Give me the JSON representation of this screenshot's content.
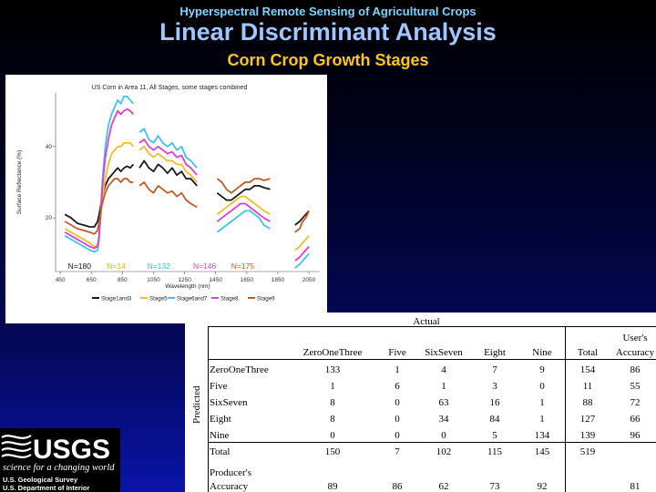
{
  "header": {
    "supertitle": "Hyperspectral Remote Sensing of Agricultural Crops",
    "title": "Linear Discriminant Analysis",
    "subtitle": "Corn Crop Growth Stages"
  },
  "chart_data": {
    "type": "line",
    "title": "US Corn in Area 11, All Stages, some stages combined",
    "xlabel": "Wavelength (nm)",
    "ylabel": "Surface Reflectance (%)",
    "xlim": [
      420,
      2120
    ],
    "ylim": [
      5,
      55
    ],
    "xticks": [
      450,
      650,
      850,
      1050,
      1250,
      1450,
      1650,
      1850,
      2050
    ],
    "yticks": [
      20,
      40
    ],
    "grid": false,
    "legend_position": "bottom",
    "gaps": [
      [
        920,
        960
      ],
      [
        1330,
        1460
      ],
      [
        1800,
        1960
      ]
    ],
    "bands": [
      {
        "segment": 0,
        "x": [
          480,
          520,
          560,
          600,
          640,
          670,
          690,
          700,
          720,
          740,
          760,
          780,
          800,
          820,
          840,
          860,
          880,
          900,
          920
        ]
      },
      {
        "segment": 1,
        "x": [
          960,
          990,
          1020,
          1050,
          1080,
          1110,
          1140,
          1170,
          1200,
          1230,
          1260,
          1290,
          1330
        ]
      },
      {
        "segment": 2,
        "x": [
          1460,
          1490,
          1520,
          1550,
          1580,
          1610,
          1640,
          1670,
          1700,
          1730,
          1760,
          1800
        ]
      },
      {
        "segment": 3,
        "x": [
          1960,
          1990,
          2010,
          2030,
          2050
        ]
      }
    ],
    "series": [
      {
        "name": "Stage1and3",
        "color": "#1a1a1a",
        "segments": [
          [
            21,
            20,
            18.5,
            18,
            17.5,
            17.5,
            19,
            21,
            26,
            29,
            31,
            32,
            33,
            34,
            33,
            34,
            34.5,
            34,
            35
          ],
          [
            34,
            36,
            34,
            33,
            35,
            34,
            32.5,
            34,
            32,
            33,
            31,
            31,
            29
          ],
          [
            27,
            26,
            25,
            25,
            26,
            27,
            28,
            28,
            29,
            29,
            28.5,
            28
          ],
          [
            18,
            19,
            20,
            21,
            22
          ]
        ]
      },
      {
        "name": "Stage5",
        "color": "#f0c020",
        "segments": [
          [
            17,
            16,
            15,
            14,
            13,
            12,
            12.5,
            15,
            25,
            31,
            35,
            38,
            39,
            40,
            40,
            41,
            41,
            41,
            40
          ],
          [
            39,
            40,
            38,
            37,
            38,
            37,
            36,
            36,
            35,
            35,
            33,
            32,
            30
          ],
          [
            21,
            22,
            23,
            24,
            25,
            26,
            26,
            25,
            24,
            23,
            22,
            21
          ],
          [
            11,
            12,
            13,
            14,
            15
          ]
        ]
      },
      {
        "name": "Stage6and7",
        "color": "#39c6e8",
        "segments": [
          [
            15,
            14,
            13,
            12,
            11,
            10.5,
            11,
            14,
            30,
            40,
            46,
            49,
            51,
            53,
            52,
            54,
            54,
            53,
            52
          ],
          [
            44,
            45,
            42,
            41,
            43,
            41,
            40,
            41,
            39,
            40,
            37,
            36,
            34
          ],
          [
            16,
            17,
            18,
            19,
            20,
            21,
            22,
            22,
            21,
            20,
            18,
            17
          ],
          [
            6,
            7,
            8,
            9,
            10
          ]
        ]
      },
      {
        "name": "Stage8",
        "color": "#e23cd4",
        "segments": [
          [
            16,
            15,
            14,
            13,
            12,
            11.5,
            12,
            15,
            28,
            37,
            42,
            46,
            48,
            50,
            49,
            50,
            50.5,
            50,
            49
          ],
          [
            41,
            42,
            40,
            39,
            40,
            39,
            38,
            38.5,
            37,
            37.5,
            35,
            34,
            32
          ],
          [
            19,
            20,
            21,
            22,
            23,
            24,
            24,
            23,
            22,
            21,
            20,
            19
          ],
          [
            8,
            9,
            10,
            11,
            12
          ]
        ]
      },
      {
        "name": "Stage9",
        "color": "#c25a26",
        "segments": [
          [
            19,
            18,
            17,
            16.5,
            16,
            15.5,
            16.5,
            19,
            24,
            27,
            29,
            30,
            31,
            31,
            30,
            31,
            31,
            30,
            30
          ],
          [
            29,
            30,
            28,
            27,
            29,
            28,
            27,
            27.5,
            26,
            27,
            25,
            24,
            23
          ],
          [
            31,
            30,
            28,
            27,
            28,
            29,
            30,
            30,
            31,
            31,
            30.5,
            31
          ],
          [
            16,
            17,
            19,
            20,
            22
          ]
        ]
      }
    ],
    "annotations": [
      {
        "text": "N=180",
        "color": "#111111",
        "x": 500
      },
      {
        "text": "N=14",
        "color": "#e6b800",
        "x": 750
      },
      {
        "text": "N=132",
        "color": "#33c0e0",
        "x": 1010
      },
      {
        "text": "N=146",
        "color": "#e040d0",
        "x": 1305
      },
      {
        "text": "N=175",
        "color": "#d0562a",
        "x": 1550
      }
    ],
    "legend": [
      "Stage1and3",
      "Stage5",
      "Stage6and7",
      "Stage8",
      "Stage9"
    ]
  },
  "table": {
    "group_label": "Actual",
    "side_label": "Predicted",
    "columns": [
      "ZeroOneThree",
      "Five",
      "SixSeven",
      "Eight",
      "Nine",
      "Total",
      "User's Accuracy"
    ],
    "users_accuracy_line1": "User's",
    "users_accuracy_line2": "Accuracy",
    "rows": [
      {
        "label": "ZeroOneThree",
        "values": [
          "133",
          "1",
          "4",
          "7",
          "9",
          "154",
          "86"
        ]
      },
      {
        "label": "Five",
        "values": [
          "1",
          "6",
          "1",
          "3",
          "0",
          "11",
          "55"
        ]
      },
      {
        "label": "SixSeven",
        "values": [
          "8",
          "0",
          "63",
          "16",
          "1",
          "88",
          "72"
        ]
      },
      {
        "label": "Eight",
        "values": [
          "8",
          "0",
          "34",
          "84",
          "1",
          "127",
          "66"
        ]
      },
      {
        "label": "Nine",
        "values": [
          "0",
          "0",
          "0",
          "5",
          "134",
          "139",
          "96"
        ]
      }
    ],
    "total_row": {
      "label": "Total",
      "values": [
        "150",
        "7",
        "102",
        "115",
        "145",
        "519",
        ""
      ]
    },
    "producers_row": {
      "label_line1": "Producer's",
      "label_line2": "Accuracy",
      "values": [
        "89",
        "86",
        "62",
        "73",
        "92",
        "",
        "81"
      ]
    }
  },
  "footer": {
    "logo_text": "USGS",
    "tagline": "science for a changing world",
    "agency1": "U.S. Geological Survey",
    "agency2": "U.S. Department of Interior"
  }
}
